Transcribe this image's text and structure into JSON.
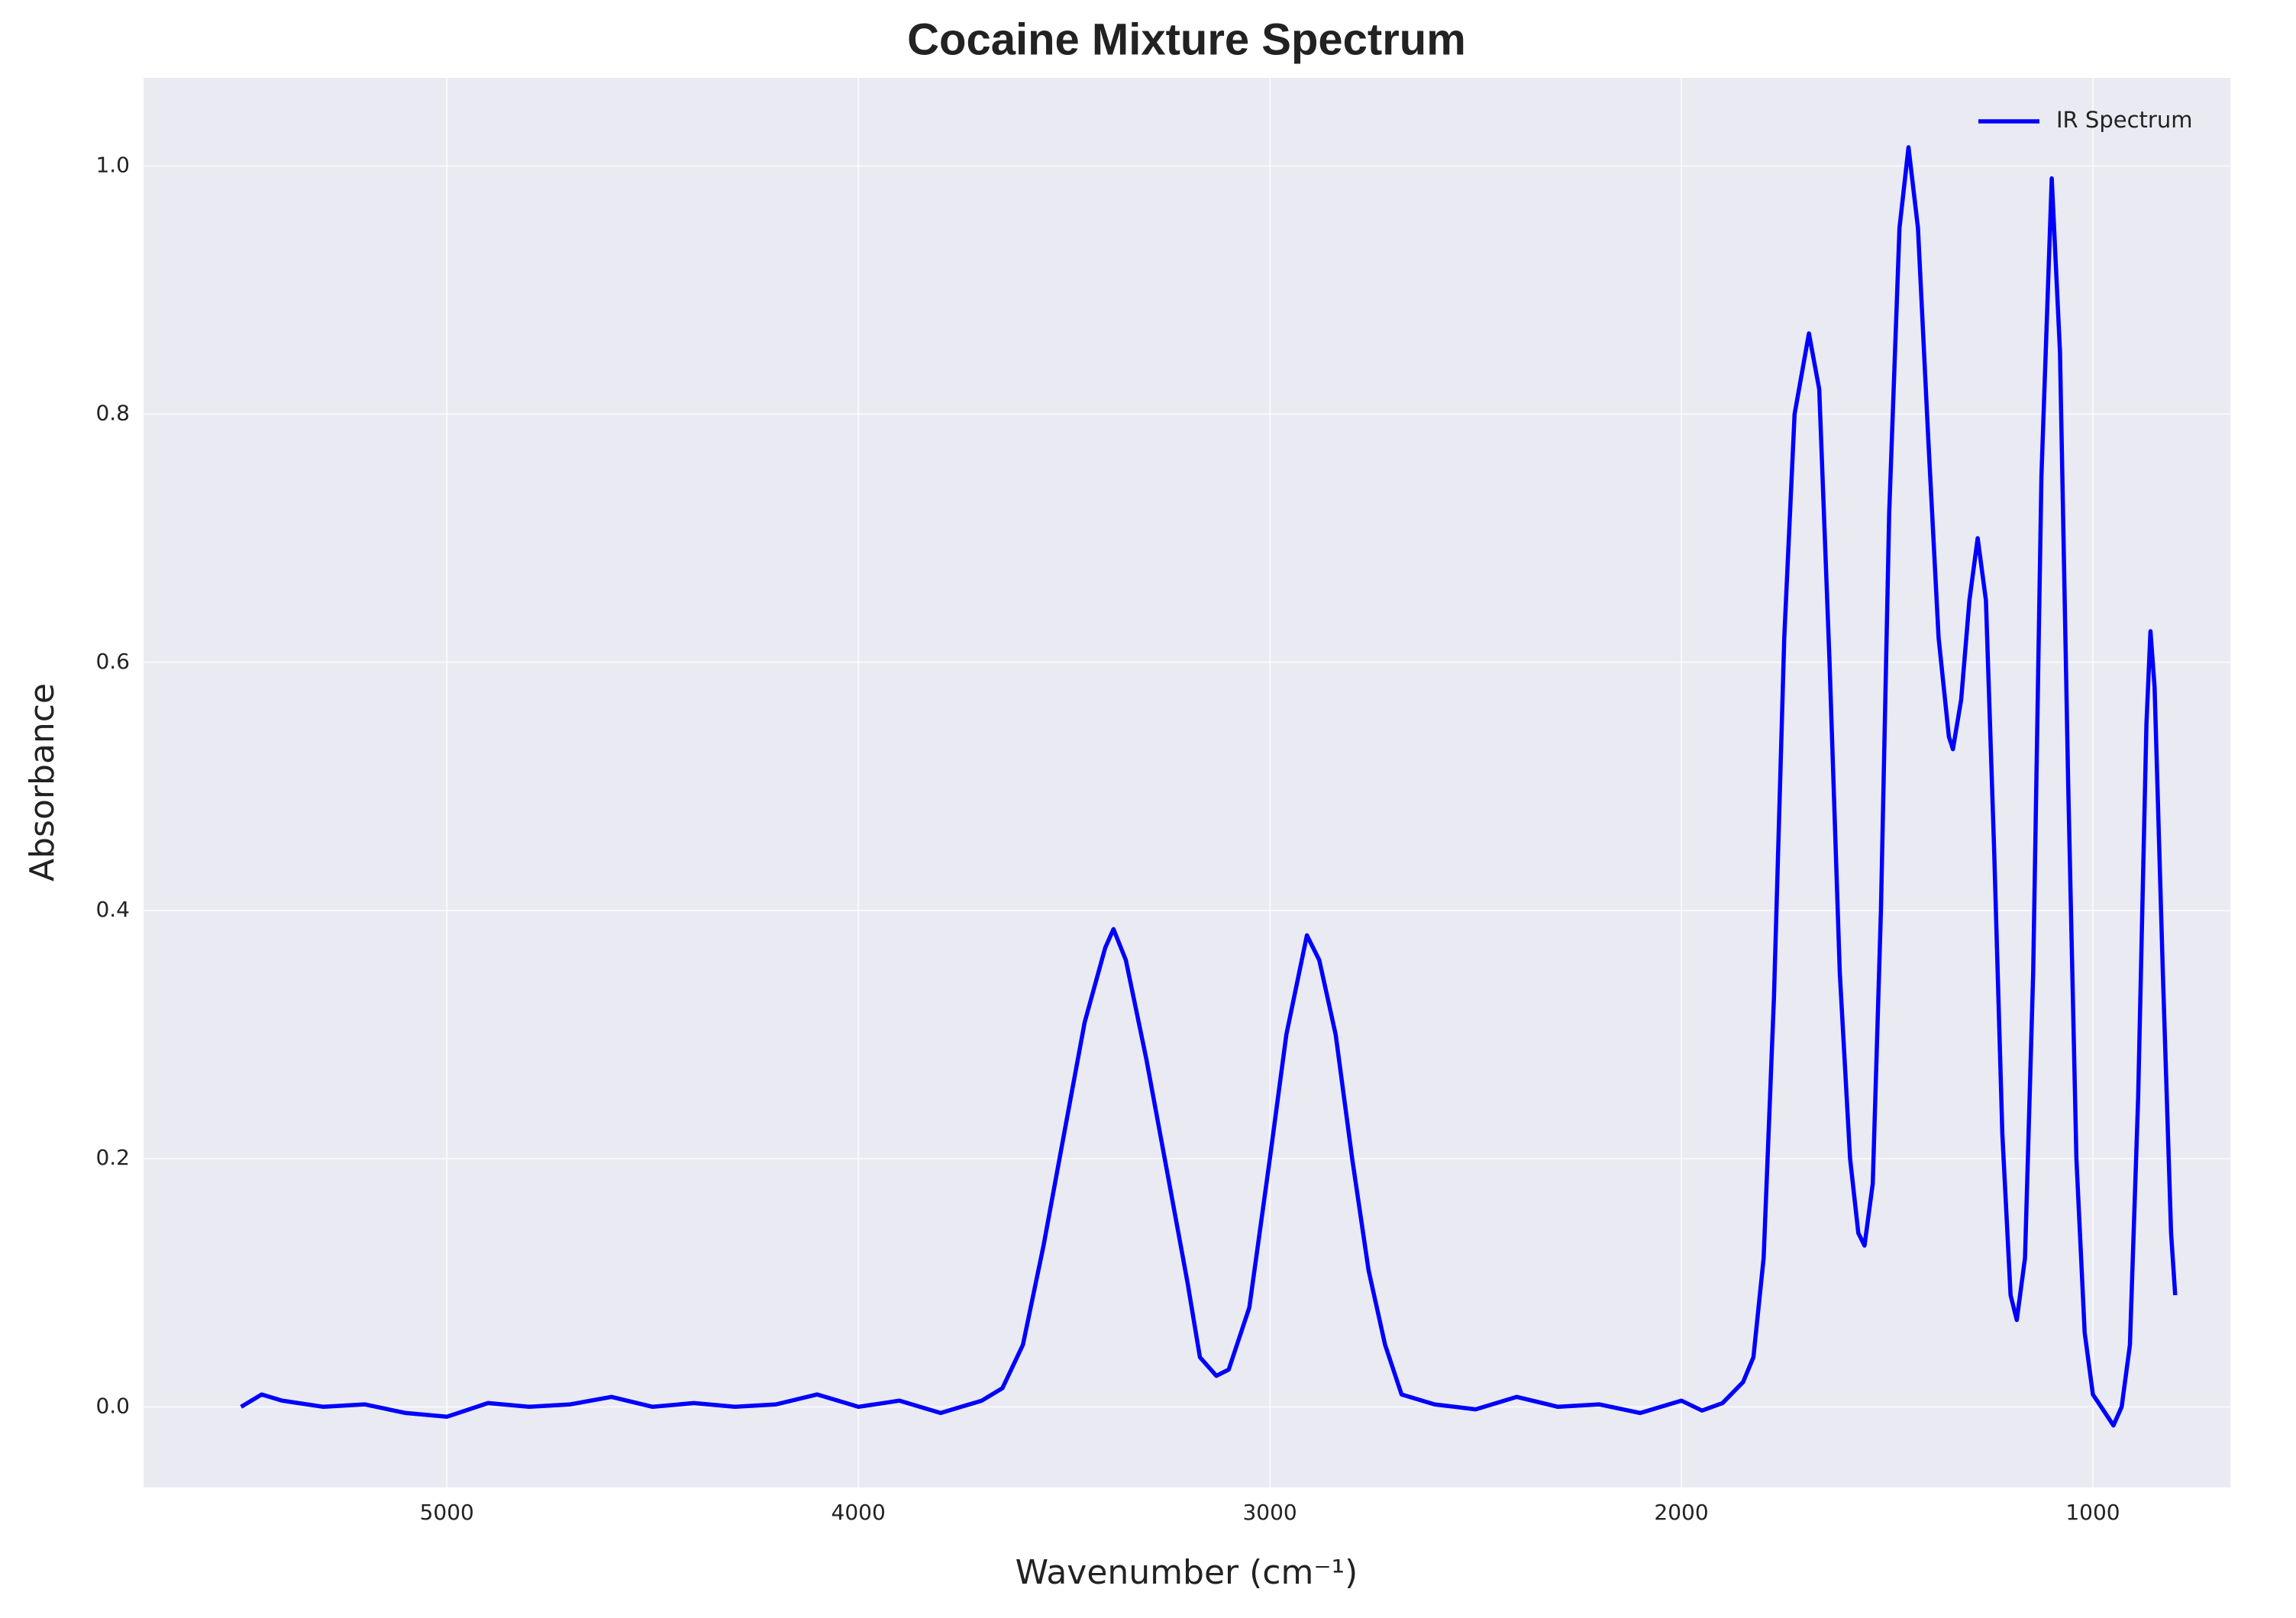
{
  "chart_data": {
    "type": "line",
    "title": "Cocaine Mixture Spectrum",
    "x_label": "Wavenumber (cm⁻¹)",
    "y_label": "Absorbance",
    "xlim": [
      5737,
      666
    ],
    "ylim": [
      -0.065,
      1.071
    ],
    "xticks": [
      5000,
      4000,
      3000,
      2000,
      1000
    ],
    "yticks": [
      {
        "value": 0,
        "label": "0.0"
      },
      0.2,
      0.4,
      0.6,
      0.8,
      {
        "value": 1,
        "label": "1.0"
      }
    ],
    "grid": true,
    "legend": "upper right",
    "x": [
      5500,
      5450,
      5400,
      5300,
      5200,
      5100,
      5000,
      4900,
      4800,
      4700,
      4600,
      4500,
      4400,
      4300,
      4200,
      4100,
      4000,
      3900,
      3800,
      3700,
      3650,
      3600,
      3550,
      3500,
      3450,
      3400,
      3380,
      3350,
      3300,
      3250,
      3200,
      3170,
      3130,
      3100,
      3050,
      3000,
      2960,
      2910,
      2880,
      2840,
      2800,
      2760,
      2720,
      2680,
      2600,
      2500,
      2400,
      2300,
      2200,
      2100,
      2000,
      1950,
      1900,
      1850,
      1825,
      1800,
      1775,
      1750,
      1725,
      1690,
      1665,
      1640,
      1615,
      1590,
      1570,
      1555,
      1535,
      1515,
      1495,
      1470,
      1448,
      1425,
      1400,
      1375,
      1350,
      1340,
      1320,
      1300,
      1280,
      1260,
      1240,
      1220,
      1200,
      1185,
      1165,
      1145,
      1125,
      1100,
      1080,
      1060,
      1040,
      1020,
      1000,
      980,
      950,
      930,
      910,
      890,
      870,
      860,
      850,
      830,
      810,
      800
    ],
    "series": [
      {
        "name": "IR Spectrum",
        "color": "#0000ff",
        "values": [
          0.0,
          0.01,
          0.005,
          0.0,
          0.002,
          -0.005,
          -0.008,
          0.003,
          0.0,
          0.002,
          0.008,
          0.0,
          0.003,
          0.0,
          0.002,
          0.01,
          0.0,
          0.005,
          -0.005,
          0.005,
          0.015,
          0.05,
          0.13,
          0.22,
          0.31,
          0.37,
          0.385,
          0.36,
          0.28,
          0.19,
          0.1,
          0.04,
          0.025,
          0.03,
          0.08,
          0.2,
          0.3,
          0.38,
          0.36,
          0.3,
          0.2,
          0.11,
          0.05,
          0.01,
          0.002,
          -0.002,
          0.008,
          0.0,
          0.002,
          -0.005,
          0.005,
          -0.003,
          0.003,
          0.02,
          0.04,
          0.12,
          0.33,
          0.62,
          0.8,
          0.865,
          0.82,
          0.6,
          0.35,
          0.2,
          0.14,
          0.13,
          0.18,
          0.4,
          0.72,
          0.95,
          1.015,
          0.95,
          0.78,
          0.62,
          0.54,
          0.53,
          0.57,
          0.65,
          0.7,
          0.65,
          0.45,
          0.22,
          0.09,
          0.07,
          0.12,
          0.35,
          0.75,
          0.99,
          0.85,
          0.5,
          0.2,
          0.06,
          0.01,
          0.0,
          -0.015,
          0.0,
          0.05,
          0.25,
          0.55,
          0.625,
          0.58,
          0.35,
          0.14,
          0.09
        ]
      }
    ]
  }
}
